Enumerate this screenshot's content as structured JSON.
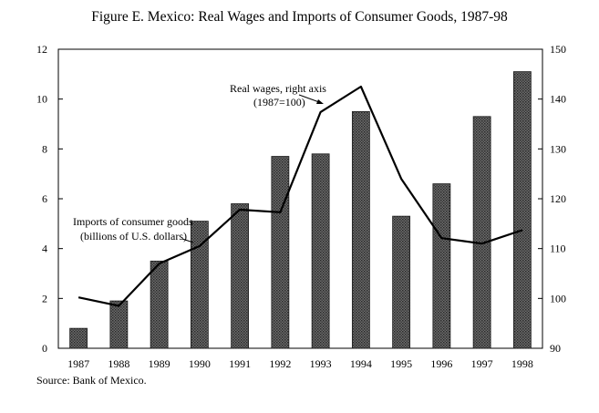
{
  "chart_data": {
    "type": "bar+line",
    "title": "Figure E. Mexico: Real Wages and Imports of Consumer Goods, 1987-98",
    "categories": [
      "1987",
      "1988",
      "1989",
      "1990",
      "1991",
      "1992",
      "1993",
      "1994",
      "1995",
      "1996",
      "1997",
      "1998"
    ],
    "series": [
      {
        "name": "Imports of consumer goods (billions of U.S. dollars)",
        "type": "bar",
        "axis": "left",
        "values": [
          0.8,
          1.9,
          3.5,
          5.1,
          5.8,
          7.7,
          7.8,
          9.5,
          5.3,
          6.6,
          9.3,
          11.1
        ]
      },
      {
        "name": "Real wages, right axis (1987=100)",
        "type": "line",
        "axis": "right",
        "values": [
          100.2,
          98.5,
          107.0,
          110.5,
          117.8,
          117.3,
          137.4,
          142.5,
          124.0,
          112.1,
          111.0,
          113.7
        ]
      }
    ],
    "left_axis": {
      "min": 0,
      "max": 12,
      "ticks": [
        0,
        2,
        4,
        6,
        8,
        10,
        12
      ]
    },
    "right_axis": {
      "min": 90,
      "max": 150,
      "ticks": [
        90,
        100,
        110,
        120,
        130,
        140,
        150
      ]
    },
    "annotations": {
      "wages_line1": "Real  wages, right axis",
      "wages_line2": "(1987=100)",
      "imports_line1": "Imports of  consumer goods",
      "imports_line2": "(billions of U.S. dollars)"
    },
    "source": "Source: Bank of Mexico.",
    "colors": {
      "bar_fill": "#5a5a5a",
      "bar_edge": "#1a1a1a",
      "line": "#000000"
    }
  }
}
